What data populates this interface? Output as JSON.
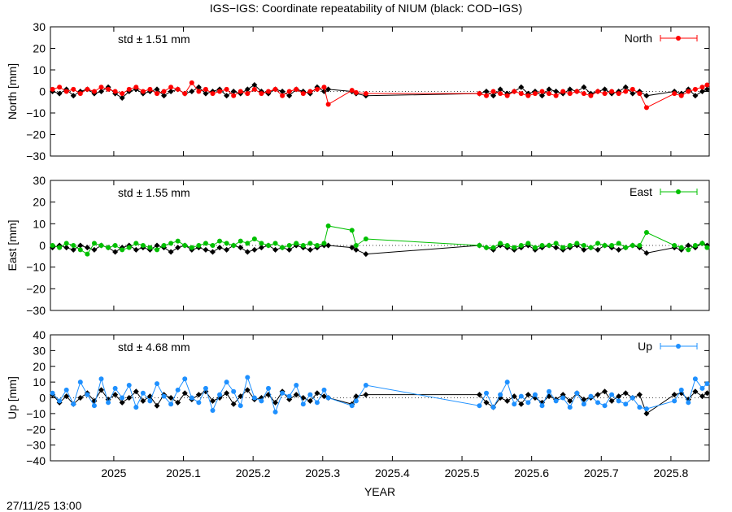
{
  "chart_data": {
    "type": "line",
    "title": "IGS−IGS: Coordinate repeatability of NIUM (black: COD−IGS)",
    "xlabel": "YEAR",
    "xlim": [
      2024.909,
      2025.855
    ],
    "xticks": [
      "2025",
      "2025.1",
      "2025.2",
      "2025.3",
      "2025.4",
      "2025.5",
      "2025.6",
      "2025.7",
      "2025.8"
    ],
    "timestamp": "27/11/25 13:00",
    "x": [
      2024.912,
      2024.922,
      2024.932,
      2024.942,
      2024.952,
      2024.962,
      2024.972,
      2024.982,
      2024.992,
      2025.002,
      2025.012,
      2025.022,
      2025.032,
      2025.042,
      2025.052,
      2025.062,
      2025.072,
      2025.082,
      2025.092,
      2025.102,
      2025.112,
      2025.122,
      2025.132,
      2025.142,
      2025.152,
      2025.162,
      2025.172,
      2025.182,
      2025.192,
      2025.202,
      2025.212,
      2025.222,
      2025.232,
      2025.242,
      2025.252,
      2025.262,
      2025.272,
      2025.282,
      2025.292,
      2025.302,
      2025.308,
      2025.342,
      2025.348,
      2025.362,
      2025.525,
      2025.535,
      2025.545,
      2025.555,
      2025.565,
      2025.575,
      2025.585,
      2025.595,
      2025.605,
      2025.615,
      2025.625,
      2025.635,
      2025.645,
      2025.655,
      2025.665,
      2025.675,
      2025.685,
      2025.695,
      2025.705,
      2025.715,
      2025.725,
      2025.735,
      2025.745,
      2025.755,
      2025.765,
      2025.805,
      2025.815,
      2025.825,
      2025.835,
      2025.845,
      2025.852
    ],
    "panels": [
      {
        "ylabel": "North [mm]",
        "ylim": [
          -30,
          30
        ],
        "yticks": [
          30,
          20,
          10,
          0,
          -10,
          -20,
          -30
        ],
        "std_label": "std ± 1.51 mm",
        "legend": "North",
        "color": "#ff0000",
        "series": [
          {
            "color": "#000000",
            "values": [
              0,
              -1,
              1,
              -2,
              0,
              1,
              -1,
              0,
              2,
              -1,
              -3,
              0,
              1,
              -1,
              0,
              1,
              -2,
              0,
              1,
              -1,
              0,
              2,
              -1,
              0,
              1,
              -2,
              0,
              -1,
              1,
              3,
              0,
              -1,
              1,
              0,
              -2,
              1,
              0,
              -1,
              2,
              0,
              1,
              0,
              -1,
              -2,
              -1,
              0,
              -2,
              1,
              -1,
              0,
              2,
              -1,
              0,
              -2,
              1,
              0,
              -1,
              1,
              0,
              2,
              -1,
              0,
              1,
              -1,
              0,
              2,
              -1,
              0,
              -2,
              0,
              -1,
              1,
              -2,
              0,
              1
            ]
          },
          {
            "name": "North",
            "color": "#ff0000",
            "values": [
              1,
              2,
              0,
              1,
              -1,
              1,
              0,
              2,
              1,
              0,
              -1,
              1,
              2,
              0,
              1,
              -1,
              0,
              2,
              1,
              -1,
              4,
              0,
              1,
              -1,
              0,
              1,
              -2,
              0,
              -1,
              1,
              -1,
              0,
              1,
              -2,
              0,
              1,
              -1,
              0,
              1,
              2,
              -6,
              0.5,
              -0.5,
              -1,
              -1,
              -2,
              0,
              -1,
              -2,
              0,
              -1,
              -2,
              -1,
              0,
              -1,
              -2,
              0,
              -1,
              0,
              -1,
              -2,
              0,
              -1,
              0,
              -1,
              0,
              1,
              -1,
              -7.5,
              -1,
              -2,
              0,
              1,
              2,
              3
            ]
          }
        ]
      },
      {
        "ylabel": "East [mm]",
        "ylim": [
          -30,
          30
        ],
        "yticks": [
          30,
          20,
          10,
          0,
          -10,
          -20,
          -30
        ],
        "std_label": "std ± 1.55 mm",
        "legend": "East",
        "color": "#00c000",
        "series": [
          {
            "color": "#000000",
            "values": [
              -1,
              0,
              -1,
              -2,
              0,
              -1,
              -2,
              0,
              -1,
              -3,
              -1,
              0,
              -2,
              -1,
              -2,
              0,
              -1,
              -3,
              -1,
              0,
              -2,
              -1,
              -2,
              -3,
              -1,
              -2,
              0,
              -1,
              -3,
              -2,
              -1,
              0,
              -2,
              -1,
              -2,
              0,
              -1,
              -2,
              -1,
              0,
              0,
              -1,
              -2,
              -4,
              0,
              -1,
              -2,
              0,
              -1,
              -2,
              -1,
              0,
              -2,
              -1,
              0,
              -1,
              -2,
              -1,
              0,
              -2,
              -1,
              -2,
              0,
              -1,
              -2,
              -1,
              0,
              -1,
              -3.5,
              -1,
              -2,
              0,
              -1,
              1,
              0
            ]
          },
          {
            "name": "East",
            "color": "#00c000",
            "values": [
              0,
              -1,
              1,
              0,
              -2,
              -4,
              1,
              0,
              -1,
              0,
              -2,
              -1,
              1,
              0,
              -1,
              -2,
              0,
              1,
              2,
              0,
              -1,
              0,
              1,
              0,
              2,
              1,
              0,
              2,
              1,
              3,
              1,
              0,
              1,
              -1,
              0,
              1,
              0,
              1,
              0,
              1,
              9,
              7,
              0,
              3,
              0,
              -1,
              -1,
              1,
              0,
              -1,
              0,
              1,
              -1,
              0,
              0,
              1,
              -1,
              0,
              1,
              0,
              -1,
              1,
              0,
              0,
              1,
              -1,
              0,
              0,
              6,
              0,
              -1,
              -2,
              0,
              1,
              -1
            ]
          }
        ]
      },
      {
        "ylabel": "Up [mm]",
        "ylim": [
          -40,
          40
        ],
        "yticks": [
          40,
          30,
          20,
          10,
          0,
          -10,
          -20,
          -30,
          -40
        ],
        "std_label": "std ± 4.68 mm",
        "legend": "Up",
        "color": "#1e90ff",
        "series": [
          {
            "color": "#000000",
            "values": [
              2,
              -3,
              1,
              -4,
              0,
              3,
              -2,
              5,
              -1,
              2,
              -3,
              0,
              4,
              -2,
              1,
              -5,
              2,
              0,
              -3,
              3,
              -1,
              2,
              4,
              -2,
              0,
              3,
              -4,
              1,
              5,
              -1,
              0,
              2,
              -3,
              4,
              -1,
              2,
              0,
              -2,
              3,
              1,
              0,
              -4,
              1,
              2,
              2,
              -3,
              -6,
              0,
              -2,
              1,
              -4,
              2,
              0,
              -3,
              1,
              -1,
              2,
              -2,
              3,
              -1,
              0,
              2,
              4,
              -2,
              1,
              3,
              0,
              2,
              -10,
              2,
              3,
              -1,
              4,
              1,
              3
            ]
          },
          {
            "name": "Up",
            "color": "#1e90ff",
            "values": [
              3,
              -2,
              5,
              -4,
              10,
              2,
              -5,
              12,
              -3,
              6,
              0,
              8,
              -6,
              3,
              -2,
              9,
              1,
              -4,
              5,
              12,
              0,
              -3,
              6,
              -8,
              2,
              10,
              4,
              -5,
              13,
              0,
              -2,
              6,
              -9,
              3,
              1,
              8,
              -4,
              2,
              -3,
              5,
              0,
              -5,
              -2,
              8,
              -5,
              3,
              -6,
              2,
              10,
              -4,
              1,
              -3,
              2,
              -5,
              4,
              -2,
              0,
              -6,
              3,
              -4,
              1,
              -3,
              -5,
              2,
              -2,
              -4,
              0,
              -6,
              -7,
              -2,
              5,
              -3,
              12,
              6,
              9
            ]
          }
        ]
      }
    ]
  }
}
